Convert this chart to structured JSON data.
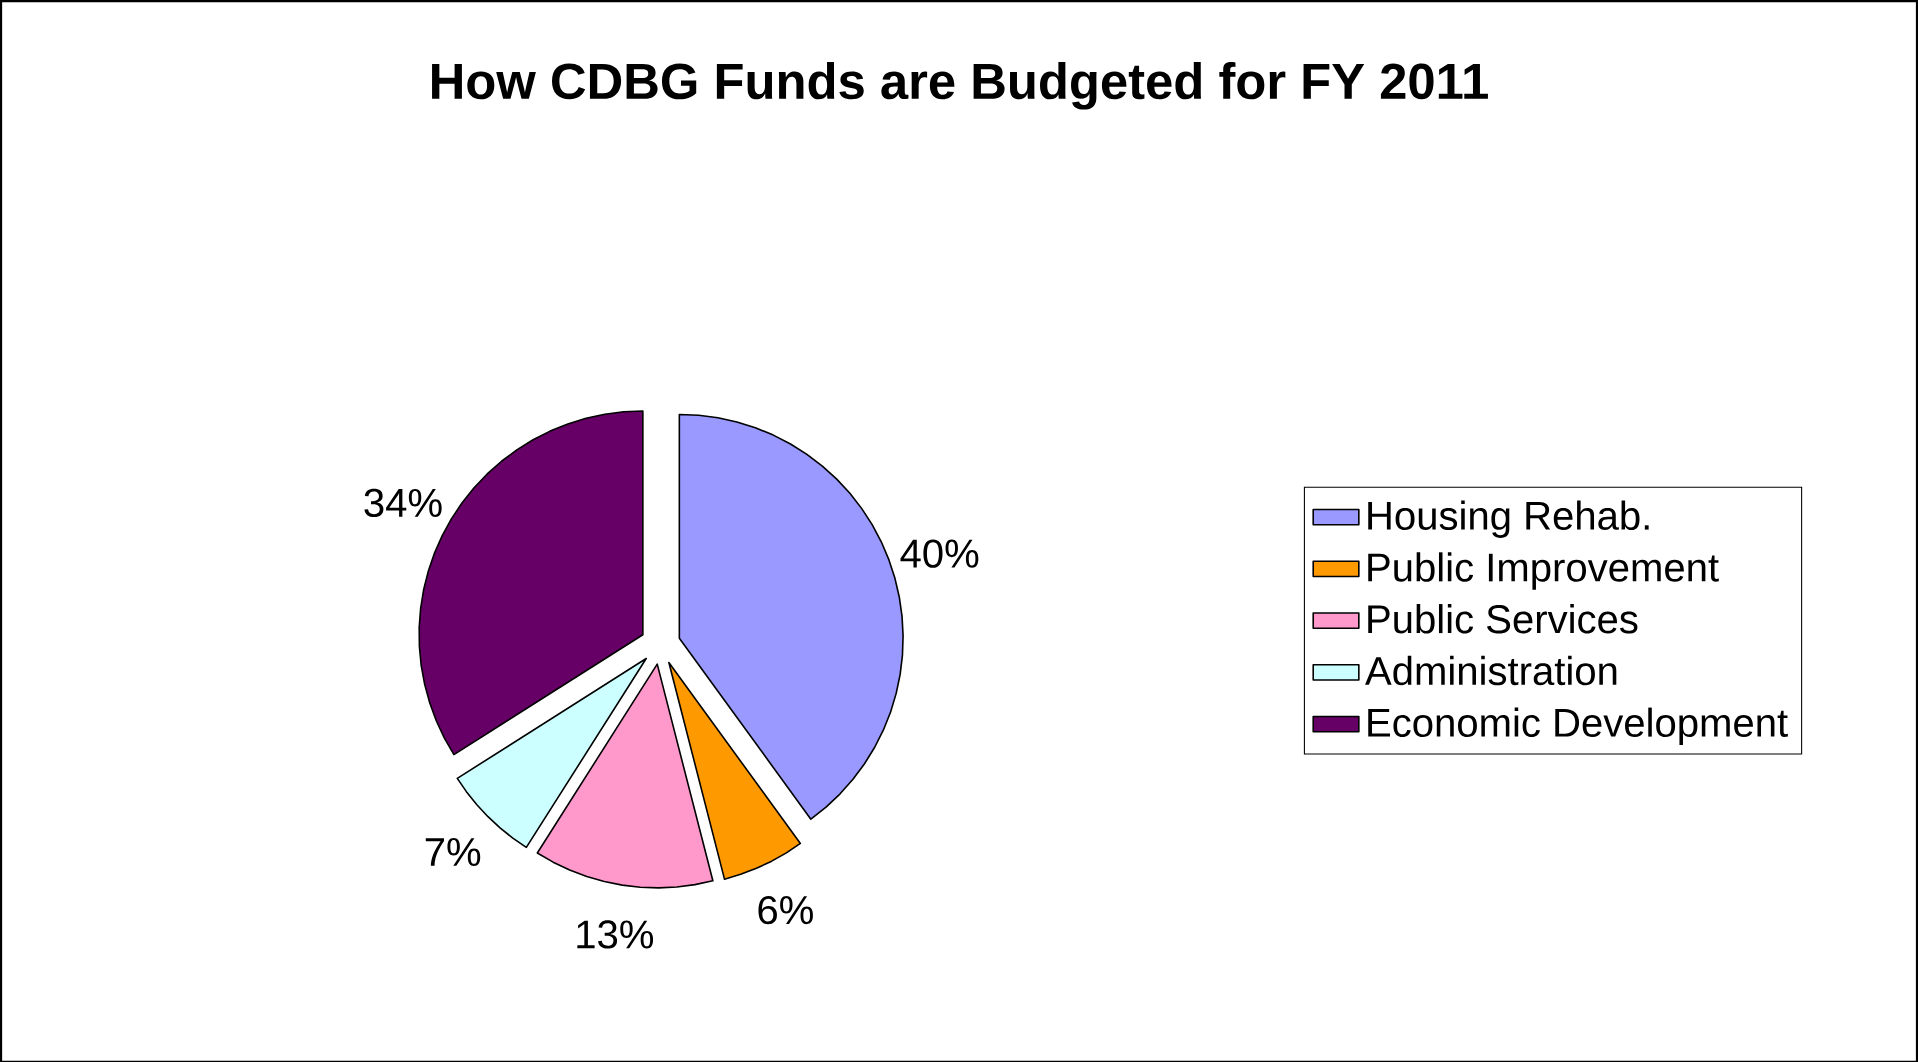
{
  "chart_data": {
    "type": "pie",
    "title": "How CDBG Funds are Budgeted for FY 2011",
    "categories": [
      "Housing Rehab.",
      "Public Improvement",
      "Public Services",
      "Administration",
      "Economic Development"
    ],
    "values": [
      40,
      6,
      13,
      7,
      34
    ],
    "value_labels": [
      "40%",
      "6%",
      "13%",
      "7%",
      "34%"
    ],
    "colors": [
      "#9999ff",
      "#ff9900",
      "#ff99cc",
      "#ccffff",
      "#660066"
    ],
    "legend": "right"
  }
}
